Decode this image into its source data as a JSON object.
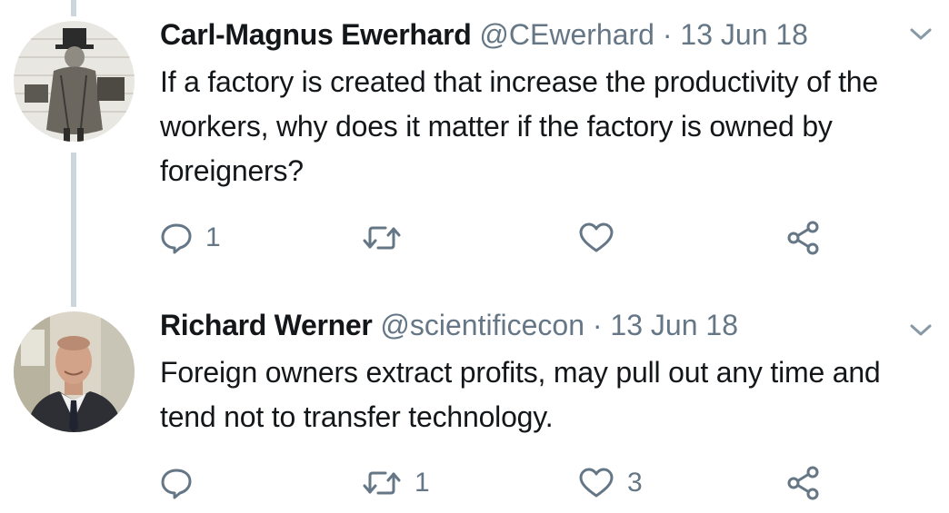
{
  "tweets": [
    {
      "name": "Carl-Magnus Ewerhard",
      "handle": "@CEwerhard",
      "separator": "·",
      "date": "13 Jun 18",
      "text": "If a factory is created that increase the productivity of the workers, why does it matter if the factory is owned by foreigners?",
      "reply_count": "1",
      "retweet_count": "",
      "like_count": "",
      "avatar": "engraving-portrait-avatar"
    },
    {
      "name": "Richard Werner",
      "handle": "@scientificecon",
      "separator": "·",
      "date": "13 Jun 18",
      "text": "Foreign owners extract profits, may pull out any time and tend not to transfer technology.",
      "reply_count": "",
      "retweet_count": "1",
      "like_count": "3",
      "avatar": "photo-portrait-avatar"
    }
  ],
  "icons": {
    "reply": "reply-icon",
    "retweet": "retweet-icon",
    "like": "heart-icon",
    "share": "share-icon",
    "more": "chevron-down-icon"
  },
  "colors": {
    "text": "#14171a",
    "muted": "#657786",
    "thread_line": "#ccd6dd"
  }
}
